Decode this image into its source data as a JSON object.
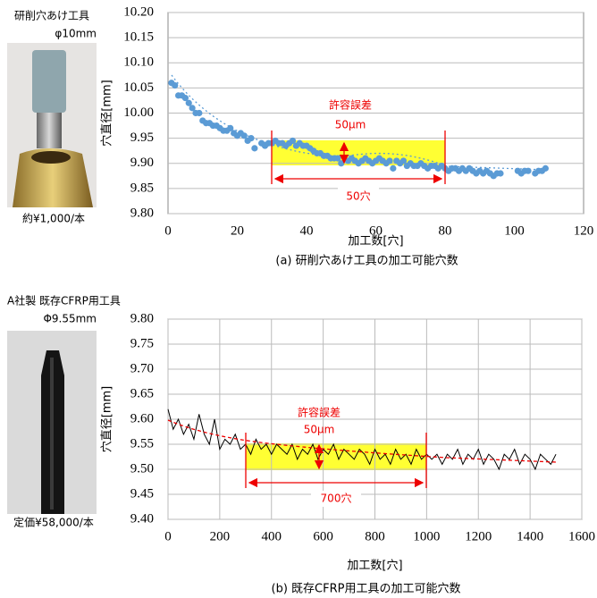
{
  "chart_data": [
    {
      "type": "scatter",
      "tool": {
        "name": "研削穴あけ工具",
        "size": "φ10mm",
        "price": "約¥1,000/本"
      },
      "xlabel": "加工数[穴]",
      "ylabel": "穴直径[mm]",
      "caption": "(a) 研削穴あけ工具の加工可能穴数",
      "annotations": {
        "tolerance_label": "許容誤差",
        "tolerance": "50μm",
        "count": "50穴"
      },
      "grid": "y",
      "series": [
        {
          "color": "#5b9bd5",
          "x": [
            1,
            2,
            3,
            4,
            5,
            6,
            7,
            8,
            9,
            10,
            11,
            12,
            13,
            14,
            15,
            16,
            17,
            18,
            19,
            20,
            21,
            22,
            23,
            24,
            25,
            27,
            28,
            29,
            30,
            31,
            32,
            33,
            34,
            35,
            36,
            37,
            38,
            39,
            40,
            41,
            42,
            43,
            44,
            45,
            46,
            47,
            48,
            49,
            50,
            52,
            53,
            54,
            55,
            56,
            57,
            58,
            59,
            60,
            61,
            62,
            63,
            64,
            65,
            66,
            67,
            68,
            69,
            70,
            71,
            72,
            73,
            74,
            75,
            76,
            77,
            78,
            79,
            80,
            81,
            82,
            83,
            84,
            85,
            86,
            87,
            88,
            89,
            90,
            91,
            92,
            93,
            94,
            95,
            96,
            101,
            102,
            103,
            104,
            106,
            107,
            108,
            109
          ],
          "values": [
            10.06,
            10.055,
            10.035,
            10.035,
            10.03,
            10.02,
            10.01,
            10.0,
            10.0,
            9.985,
            9.98,
            9.98,
            9.975,
            9.975,
            9.97,
            9.965,
            9.965,
            9.97,
            9.96,
            9.955,
            9.96,
            9.955,
            9.945,
            9.95,
            9.93,
            9.94,
            9.935,
            9.94,
            9.94,
            9.945,
            9.94,
            9.94,
            9.935,
            9.94,
            9.945,
            9.935,
            9.94,
            9.935,
            9.935,
            9.93,
            9.925,
            9.92,
            9.92,
            9.915,
            9.915,
            9.91,
            9.91,
            9.91,
            9.9,
            9.905,
            9.91,
            9.905,
            9.9,
            9.905,
            9.91,
            9.905,
            9.9,
            9.905,
            9.91,
            9.905,
            9.9,
            9.905,
            9.89,
            9.905,
            9.9,
            9.905,
            9.895,
            9.9,
            9.895,
            9.895,
            9.9,
            9.895,
            9.89,
            9.895,
            9.895,
            9.89,
            9.895,
            9.89,
            9.885,
            9.89,
            9.89,
            9.885,
            9.89,
            9.885,
            9.89,
            9.885,
            9.88,
            9.885,
            9.88,
            9.885,
            9.88,
            9.875,
            9.88,
            9.88,
            9.885,
            9.88,
            9.885,
            9.885,
            9.88,
            9.885,
            9.885,
            9.89
          ]
        }
      ],
      "xlim": [
        0,
        120
      ],
      "xticks": [
        0,
        20,
        40,
        60,
        80,
        100,
        120
      ],
      "ylim": [
        9.8,
        10.2
      ],
      "yticks": [
        {
          "value": 9.8,
          "label": "9.80"
        },
        9.85,
        {
          "value": 9.9,
          "label": "9.90"
        },
        9.95,
        {
          "value": 10,
          "label": "10.00"
        },
        10.05,
        {
          "value": 10.1,
          "label": "10.10"
        },
        10.15,
        {
          "value": 10.2,
          "label": "10.20"
        }
      ]
    },
    {
      "type": "line",
      "tool": {
        "name": "A社製 既存CFRP用工具",
        "size": "Φ9.55mm",
        "price": "定価¥58,000/本"
      },
      "xlabel": "加工数[穴]",
      "ylabel": "穴直径[mm]",
      "caption": "(b) 既存CFRP用工具の加工可能穴数",
      "annotations": {
        "tolerance_label": "許容誤差",
        "tolerance": "50μm",
        "count": "700穴"
      },
      "grid": "both",
      "series": [
        {
          "color": "#000000",
          "x": [
            0,
            20,
            40,
            60,
            80,
            100,
            120,
            140,
            160,
            180,
            200,
            220,
            240,
            260,
            280,
            300,
            320,
            340,
            360,
            380,
            400,
            420,
            440,
            460,
            480,
            500,
            520,
            540,
            560,
            580,
            600,
            620,
            640,
            660,
            680,
            700,
            720,
            740,
            760,
            780,
            800,
            820,
            840,
            860,
            880,
            900,
            920,
            940,
            960,
            980,
            1000,
            1020,
            1040,
            1060,
            1080,
            1100,
            1120,
            1140,
            1160,
            1180,
            1200,
            1220,
            1240,
            1260,
            1280,
            1300,
            1320,
            1340,
            1360,
            1380,
            1400,
            1420,
            1440,
            1460,
            1480,
            1500
          ],
          "values": [
            9.62,
            9.58,
            9.6,
            9.57,
            9.59,
            9.56,
            9.61,
            9.57,
            9.55,
            9.6,
            9.54,
            9.56,
            9.55,
            9.57,
            9.54,
            9.55,
            9.53,
            9.56,
            9.54,
            9.55,
            9.53,
            9.55,
            9.54,
            9.53,
            9.55,
            9.52,
            9.54,
            9.53,
            9.55,
            9.52,
            9.54,
            9.53,
            9.55,
            9.52,
            9.54,
            9.53,
            9.52,
            9.54,
            9.53,
            9.51,
            9.54,
            9.52,
            9.53,
            9.51,
            9.54,
            9.52,
            9.53,
            9.51,
            9.54,
            9.52,
            9.53,
            9.52,
            9.53,
            9.51,
            9.53,
            9.52,
            9.54,
            9.51,
            9.53,
            9.52,
            9.54,
            9.51,
            9.53,
            9.52,
            9.5,
            9.53,
            9.52,
            9.54,
            9.51,
            9.53,
            9.52,
            9.5,
            9.53,
            9.52,
            9.51,
            9.53
          ]
        }
      ],
      "xlim": [
        0,
        1600
      ],
      "xticks": [
        0,
        200,
        400,
        600,
        800,
        1000,
        1200,
        1400,
        1600
      ],
      "ylim": [
        9.4,
        9.8
      ],
      "yticks": [
        {
          "value": 9.4,
          "label": "9.40"
        },
        9.45,
        {
          "value": 9.5,
          "label": "9.50"
        },
        9.55,
        {
          "value": 9.6,
          "label": "9.60"
        },
        9.65,
        {
          "value": 9.7,
          "label": "9.70"
        },
        9.75,
        {
          "value": 9.8,
          "label": "9.80"
        }
      ]
    }
  ]
}
